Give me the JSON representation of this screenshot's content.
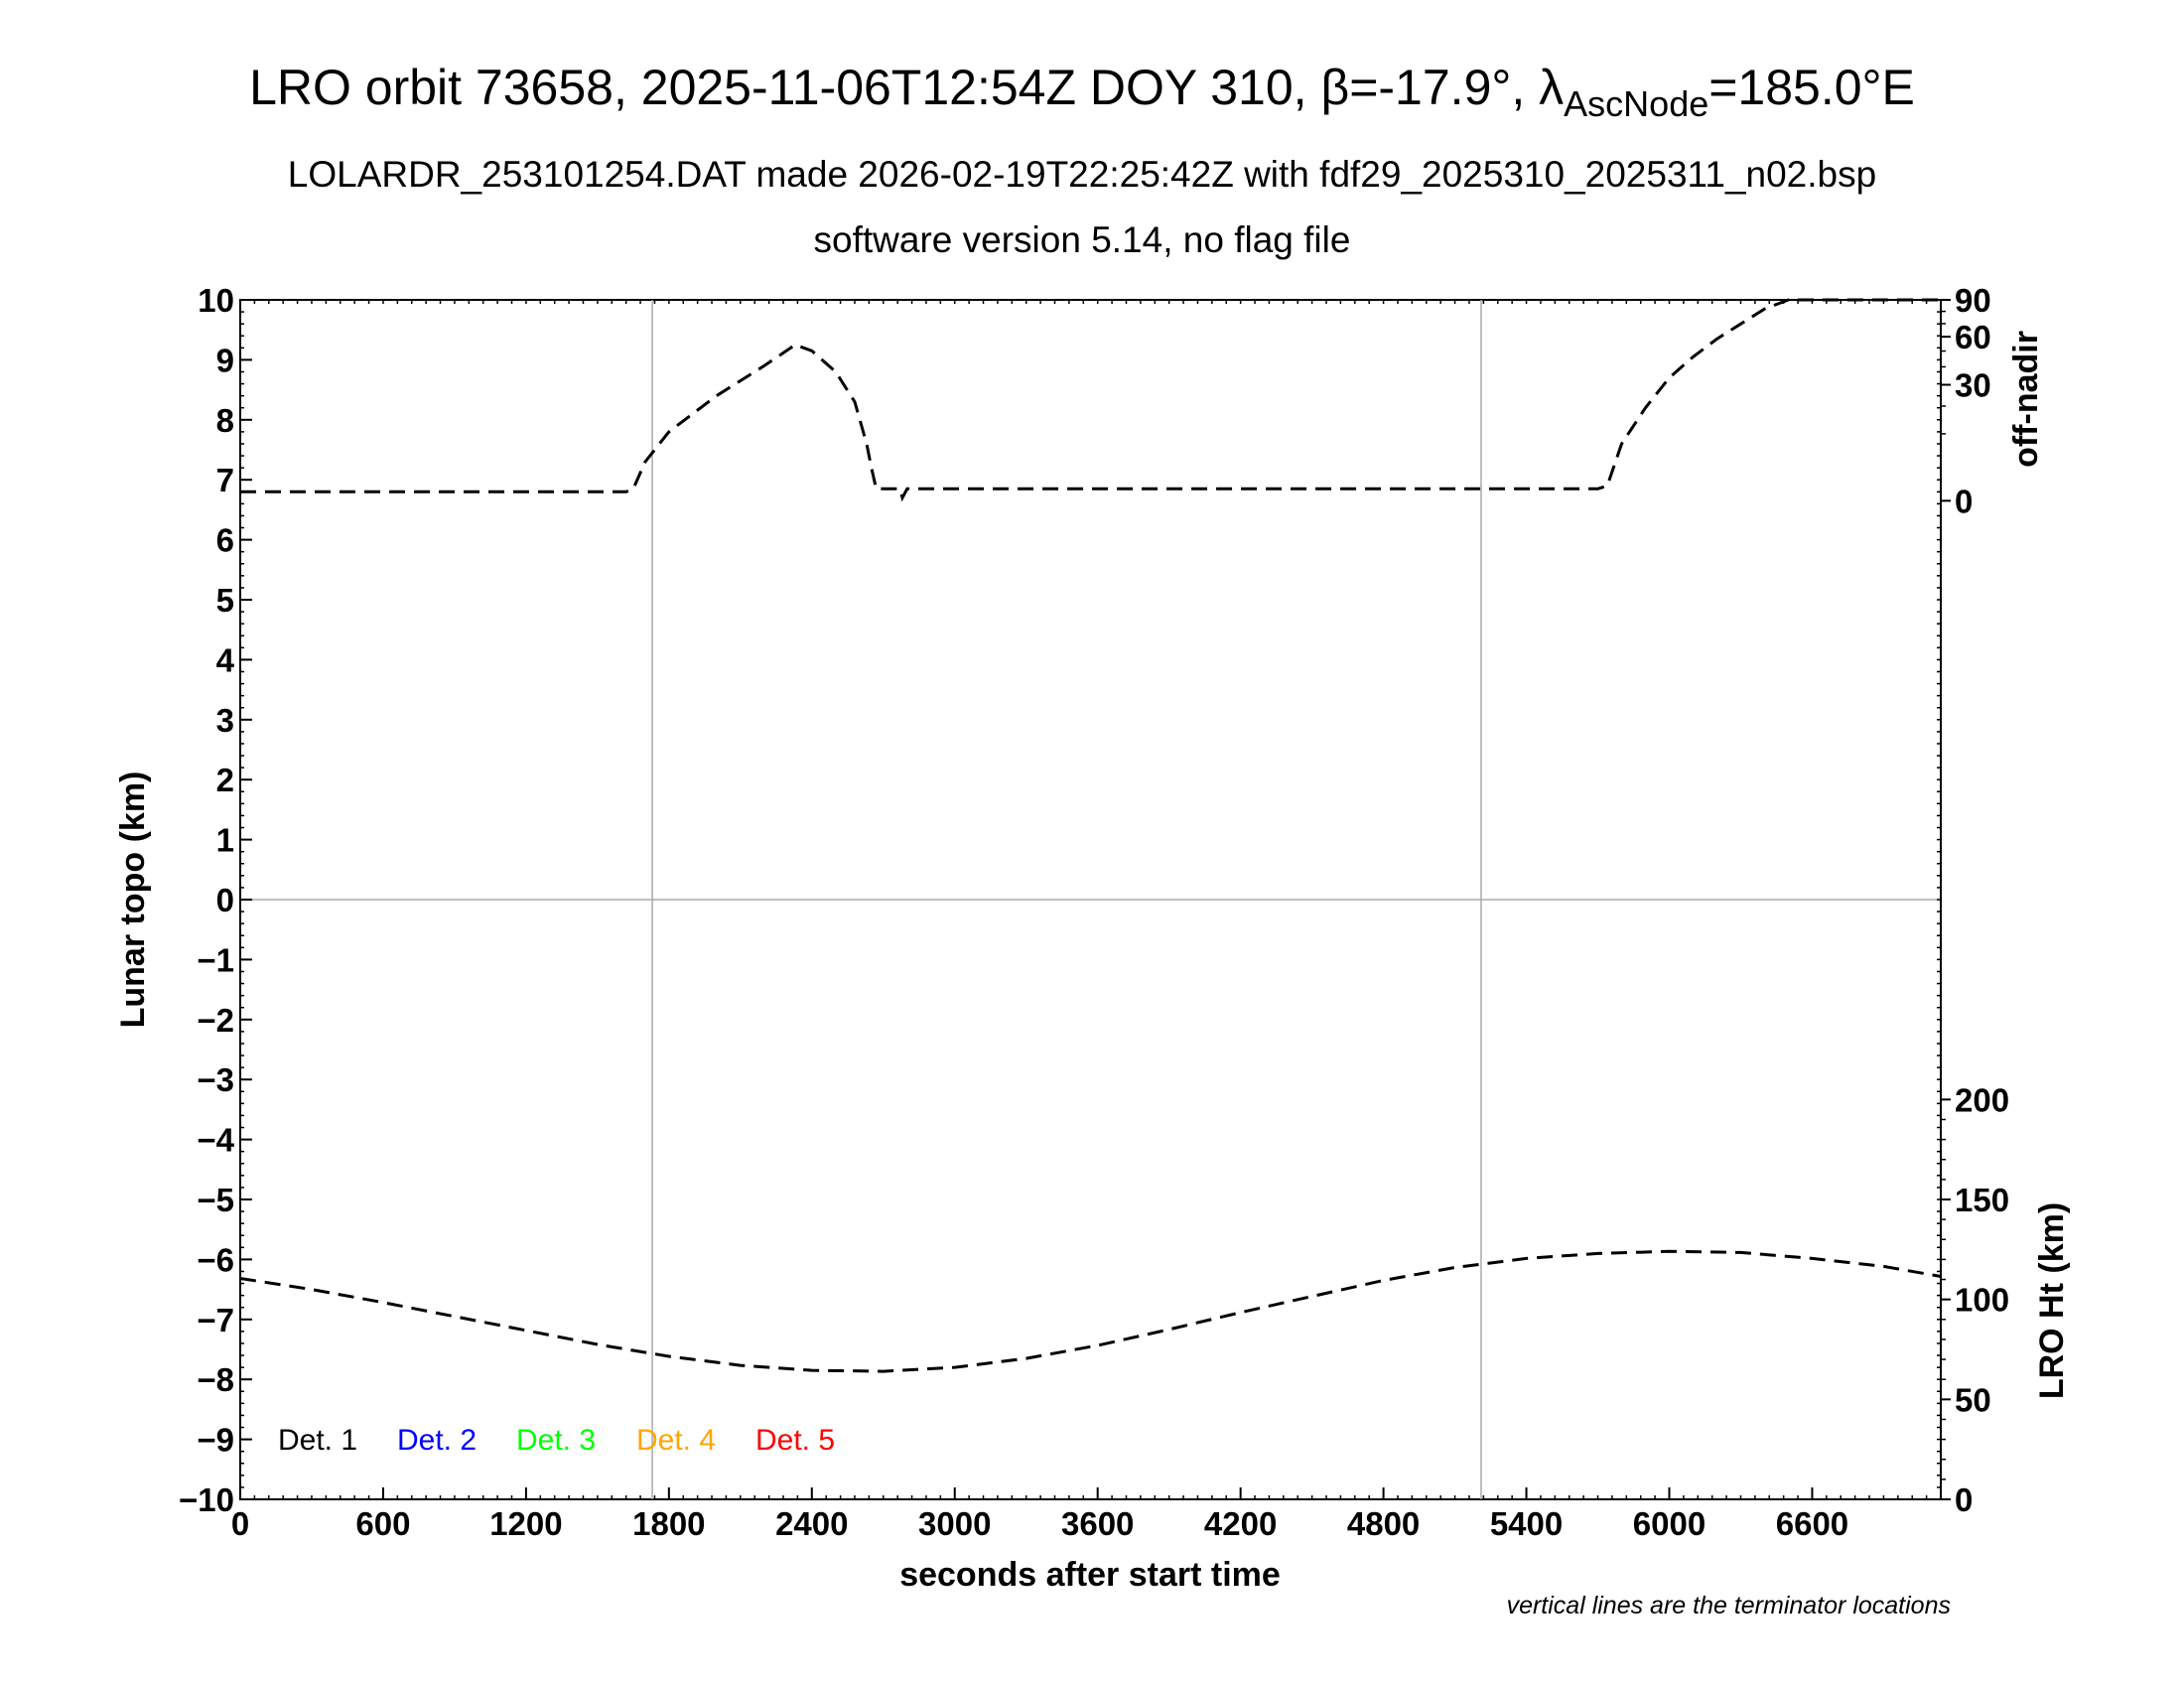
{
  "page": {
    "title_main": "LRO orbit 73658, 2025-11-06T12:54Z DOY 310, β=-17.9°, λ",
    "title_sub": "AscNode",
    "title_end": "=185.0°E",
    "subtitle1": "LOLARDR_253101254.DAT made 2026-02-19T22:25:42Z with fdf29_2025310_2025311_n02.bsp",
    "subtitle2": "software version 5.14, no flag file",
    "note": "vertical lines are the terminator locations"
  },
  "colors": {
    "det1": "#000000",
    "det2": "#0000ff",
    "det3": "#00ff00",
    "det4": "#ffa500",
    "det5": "#ff0000",
    "grid": "#aaaaaa"
  },
  "chart_data": {
    "type": "line",
    "xlabel": "seconds after start time",
    "ylabel": "Lunar topo (km)",
    "y2_top_label": "off-nadir",
    "y2_bottom_label": "LRO Ht (km)",
    "xlim": [
      0,
      7140
    ],
    "ylim": [
      -10,
      10
    ],
    "x_ticks": [
      0,
      600,
      1200,
      1800,
      2400,
      3000,
      3600,
      4200,
      4800,
      5400,
      6000,
      6600
    ],
    "y_ticks": [
      "10",
      "9",
      "8",
      "7",
      "6",
      "5",
      "4",
      "3",
      "2",
      "1",
      "0",
      "−1",
      "−2",
      "−3",
      "−4",
      "−5",
      "−6",
      "−7",
      "−8",
      "−9",
      "−10"
    ],
    "off_nadir_ticks": [
      "90",
      "60",
      "30",
      "0"
    ],
    "lro_ht_ticks": [
      "200",
      "150",
      "100",
      "50",
      "0"
    ],
    "terminators": [
      1730,
      5210
    ],
    "legend": [
      "Det. 1",
      "Det. 2",
      "Det. 3",
      "Det. 4",
      "Det. 5"
    ],
    "series": [
      {
        "label": "off-nadir",
        "x": [
          0,
          1620,
          1650,
          1700,
          1800,
          2000,
          2200,
          2330,
          2400,
          2500,
          2580,
          2630,
          2650,
          2670,
          2770,
          2780,
          2800,
          4000,
          5700,
          5740,
          5800,
          5900,
          6000,
          6100,
          6200,
          6300,
          6400,
          6500,
          6600,
          6800,
          7000,
          7140
        ],
        "y": [
          6.8,
          6.8,
          6.85,
          7.3,
          7.8,
          8.4,
          8.9,
          9.25,
          9.15,
          8.8,
          8.3,
          7.6,
          7.2,
          6.85,
          6.85,
          6.7,
          6.85,
          6.85,
          6.85,
          6.9,
          7.6,
          8.2,
          8.7,
          9.05,
          9.35,
          9.6,
          9.85,
          10.0,
          10.0,
          10.0,
          10.0,
          10.0
        ]
      },
      {
        "label": "LRO Ht",
        "x": [
          0,
          300,
          600,
          900,
          1200,
          1500,
          1800,
          2100,
          2400,
          2700,
          3000,
          3300,
          3600,
          3900,
          4200,
          4500,
          4800,
          5100,
          5400,
          5700,
          6000,
          6300,
          6600,
          6900,
          7140
        ],
        "y": [
          110.5,
          105,
          98.5,
          91.5,
          84.5,
          77.5,
          71.5,
          67,
          64.5,
          64,
          66,
          70.5,
          77,
          85,
          93.5,
          101.5,
          109.5,
          116,
          120.5,
          123,
          124,
          123.5,
          120.5,
          116.5,
          111.5
        ]
      }
    ]
  }
}
